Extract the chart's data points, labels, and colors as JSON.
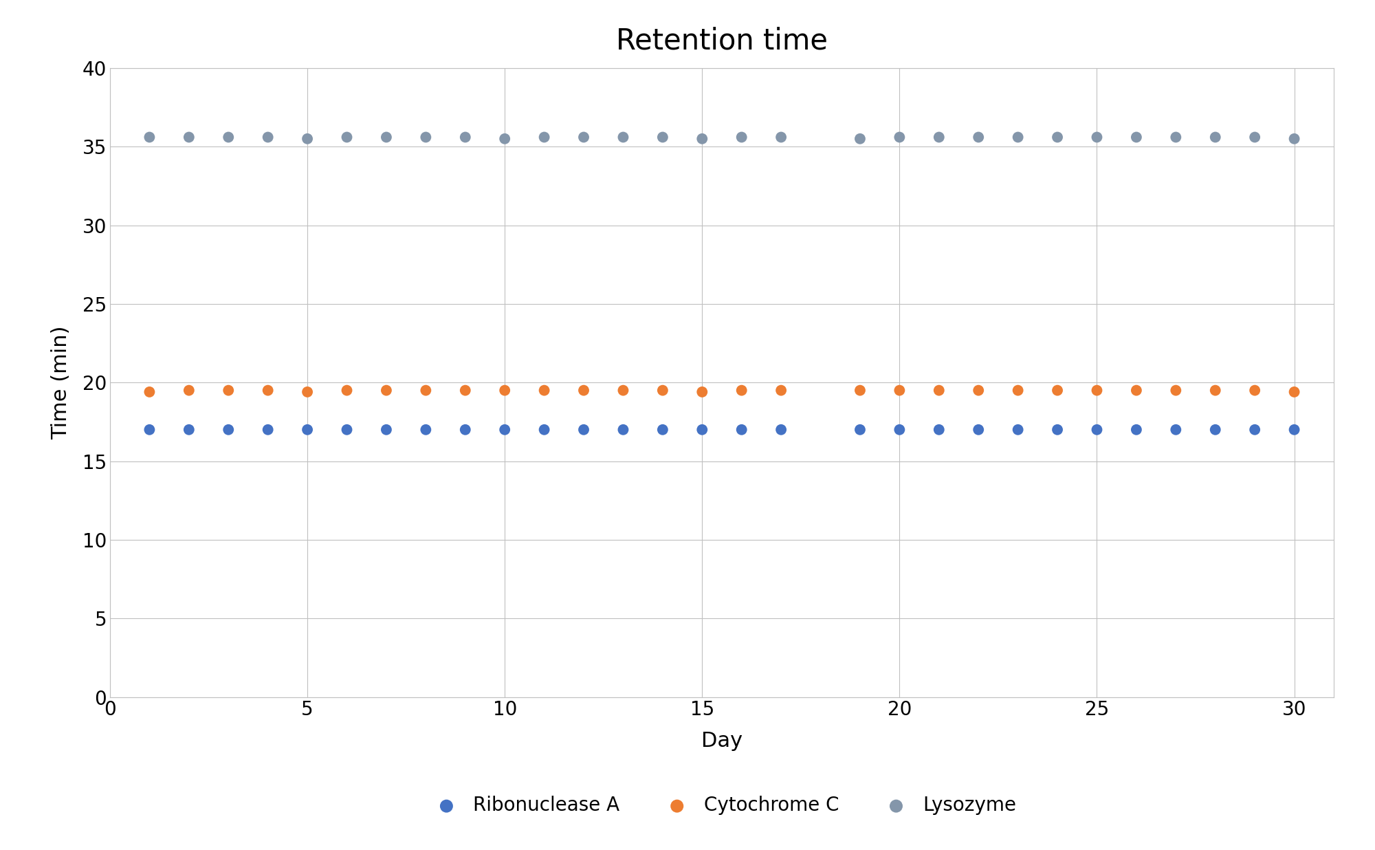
{
  "title": "Retention time",
  "xlabel": "Day",
  "ylabel": "Time (min)",
  "xlim": [
    0,
    31
  ],
  "ylim": [
    0,
    40
  ],
  "xticks": [
    0,
    5,
    10,
    15,
    20,
    25,
    30
  ],
  "yticks": [
    0,
    5,
    10,
    15,
    20,
    25,
    30,
    35,
    40
  ],
  "series": [
    {
      "label": "Ribonuclease A",
      "color": "#4472C4",
      "days": [
        1,
        2,
        3,
        4,
        5,
        6,
        7,
        8,
        9,
        10,
        11,
        12,
        13,
        14,
        15,
        16,
        17,
        19,
        20,
        21,
        22,
        23,
        24,
        25,
        26,
        27,
        28,
        29,
        30
      ],
      "values": [
        17.0,
        17.0,
        17.0,
        17.0,
        17.0,
        17.0,
        17.0,
        17.0,
        17.0,
        17.0,
        17.0,
        17.0,
        17.0,
        17.0,
        17.0,
        17.0,
        17.0,
        17.0,
        17.0,
        17.0,
        17.0,
        17.0,
        17.0,
        17.0,
        17.0,
        17.0,
        17.0,
        17.0,
        17.0
      ]
    },
    {
      "label": "Cytochrome C",
      "color": "#ED7D31",
      "days": [
        1,
        2,
        3,
        4,
        5,
        6,
        7,
        8,
        9,
        10,
        11,
        12,
        13,
        14,
        15,
        16,
        17,
        19,
        20,
        21,
        22,
        23,
        24,
        25,
        26,
        27,
        28,
        29,
        30
      ],
      "values": [
        19.4,
        19.5,
        19.5,
        19.5,
        19.4,
        19.5,
        19.5,
        19.5,
        19.5,
        19.5,
        19.5,
        19.5,
        19.5,
        19.5,
        19.4,
        19.5,
        19.5,
        19.5,
        19.5,
        19.5,
        19.5,
        19.5,
        19.5,
        19.5,
        19.5,
        19.5,
        19.5,
        19.5,
        19.4
      ]
    },
    {
      "label": "Lysozyme",
      "color": "#8496AA",
      "days": [
        1,
        2,
        3,
        4,
        5,
        6,
        7,
        8,
        9,
        10,
        11,
        12,
        13,
        14,
        15,
        16,
        17,
        19,
        20,
        21,
        22,
        23,
        24,
        25,
        26,
        27,
        28,
        29,
        30
      ],
      "values": [
        35.6,
        35.6,
        35.6,
        35.6,
        35.5,
        35.6,
        35.6,
        35.6,
        35.6,
        35.5,
        35.6,
        35.6,
        35.6,
        35.6,
        35.5,
        35.6,
        35.6,
        35.5,
        35.6,
        35.6,
        35.6,
        35.6,
        35.6,
        35.6,
        35.6,
        35.6,
        35.6,
        35.6,
        35.5
      ]
    }
  ],
  "marker_size": 130,
  "background_color": "#ffffff",
  "grid_color": "#C0C0C0",
  "title_fontsize": 30,
  "label_fontsize": 22,
  "tick_fontsize": 20,
  "legend_fontsize": 20
}
